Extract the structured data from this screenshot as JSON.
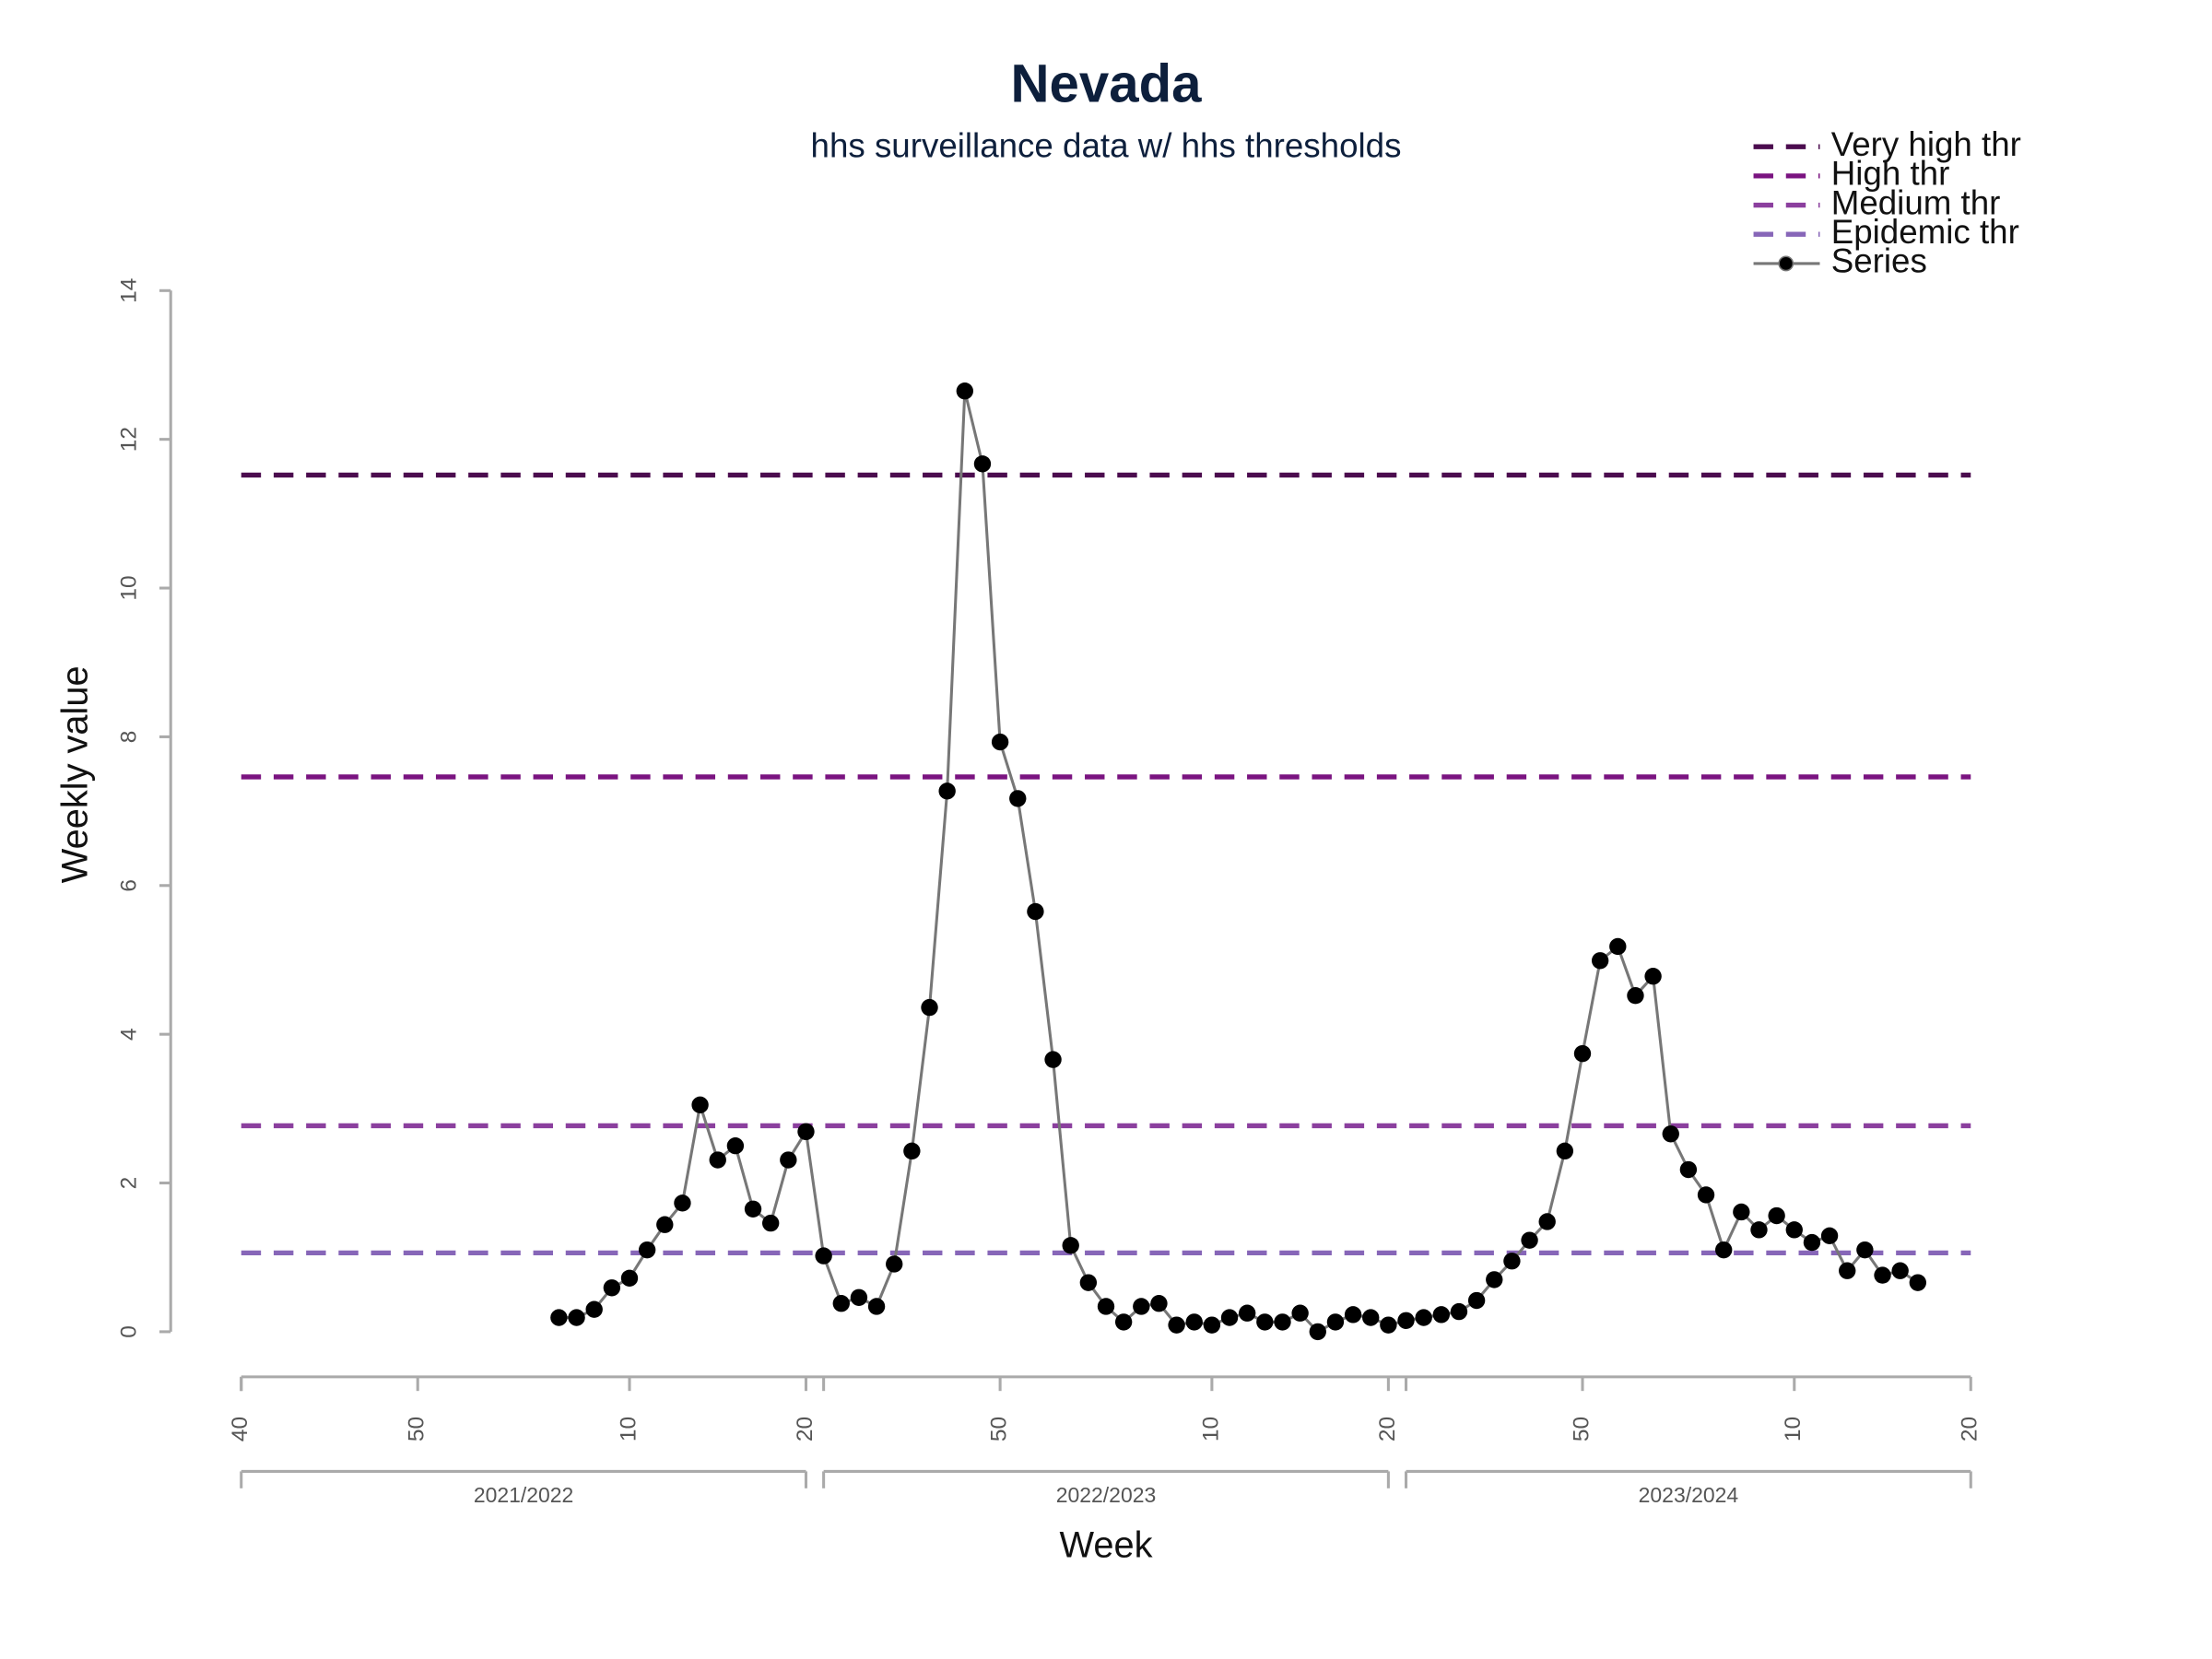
{
  "chart_data": {
    "type": "line",
    "title": "Nevada",
    "subtitle": "hhs surveillance data w/ hhs thresholds",
    "x_label": "Week",
    "y_label": "Weekly value",
    "ylim": [
      0,
      14
    ],
    "yticks": [
      0,
      2,
      4,
      6,
      8,
      10,
      12,
      14
    ],
    "xlim": [
      0,
      98
    ],
    "xticks": [
      {
        "value": 0,
        "label": "40"
      },
      {
        "value": 10,
        "label": "50"
      },
      {
        "value": 22,
        "label": "10"
      },
      {
        "value": 32,
        "label": "20"
      },
      {
        "value": 43,
        "label": "50"
      },
      {
        "value": 55,
        "label": "10"
      },
      {
        "value": 65,
        "label": "20"
      },
      {
        "value": 76,
        "label": "50"
      },
      {
        "value": 88,
        "label": "10"
      },
      {
        "value": 98,
        "label": "20"
      }
    ],
    "seasons": [
      {
        "name": "2021/2022",
        "start": 0,
        "end": 32
      },
      {
        "name": "2022/2023",
        "start": 33,
        "end": 65
      },
      {
        "name": "2023/2024",
        "start": 66,
        "end": 98
      }
    ],
    "thresholds": [
      {
        "name": "Very high thr",
        "color": "#4b0c4e",
        "value": 11.52
      },
      {
        "name": "High thr",
        "color": "#7a1380",
        "value": 7.46
      },
      {
        "name": "Medium thr",
        "color": "#8b3f9e",
        "value": 2.77
      },
      {
        "name": "Epidemic thr",
        "color": "#8766b8",
        "value": 1.06
      }
    ],
    "series": [
      {
        "name": "Series",
        "color": "#777777",
        "marker_color": "#000000",
        "x": [
          18,
          19,
          20,
          21,
          22,
          23,
          24,
          25,
          26,
          27,
          28,
          29,
          30,
          31,
          32,
          33,
          34,
          35,
          36,
          37,
          38,
          39,
          40,
          41,
          42,
          43,
          44,
          45,
          46,
          47,
          48,
          49,
          50,
          51,
          52,
          53,
          54,
          55,
          56,
          57,
          58,
          59,
          60,
          61,
          62,
          63,
          64,
          65,
          66,
          67,
          68,
          69,
          70,
          71,
          72,
          73,
          74,
          75,
          76,
          77,
          78,
          79,
          80,
          81,
          82,
          83,
          84,
          85,
          86,
          87,
          88,
          89,
          90,
          91,
          92,
          93,
          94,
          95
        ],
        "values": [
          0.19,
          0.19,
          0.3,
          0.59,
          0.72,
          1.1,
          1.44,
          1.73,
          3.05,
          2.31,
          2.5,
          1.65,
          1.46,
          2.31,
          2.69,
          1.02,
          0.38,
          0.46,
          0.34,
          0.91,
          2.43,
          4.36,
          7.27,
          12.65,
          11.67,
          7.93,
          7.17,
          5.65,
          3.66,
          1.16,
          0.66,
          0.34,
          0.13,
          0.34,
          0.38,
          0.09,
          0.13,
          0.09,
          0.19,
          0.25,
          0.13,
          0.13,
          0.25,
          0.0,
          0.13,
          0.23,
          0.19,
          0.09,
          0.15,
          0.19,
          0.23,
          0.27,
          0.42,
          0.7,
          0.95,
          1.23,
          1.48,
          2.43,
          3.74,
          4.99,
          5.18,
          4.52,
          4.78,
          2.66,
          2.18,
          1.84,
          1.1,
          1.61,
          1.37,
          1.56,
          1.37,
          1.2,
          1.29,
          0.82,
          1.1,
          0.76,
          0.82,
          0.66
        ]
      }
    ]
  }
}
